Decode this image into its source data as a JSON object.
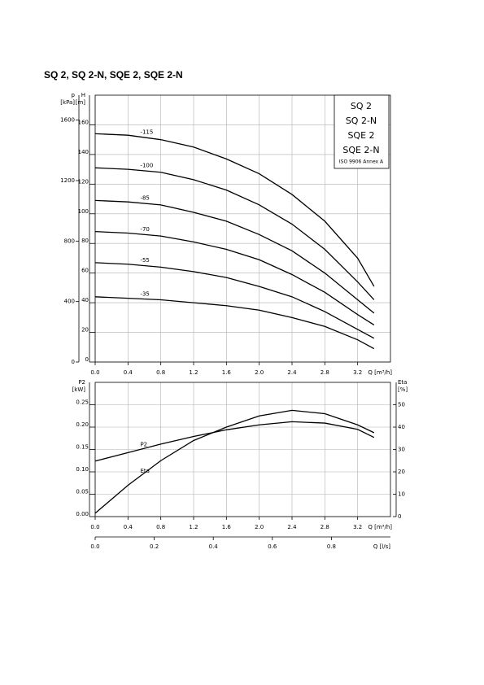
{
  "title": "SQ 2, SQ 2-N, SQE 2, SQE 2-N",
  "chart_data": [
    {
      "type": "line",
      "xlabel": "Q [m³/h]",
      "ylabel": [
        "H",
        "[m]"
      ],
      "y2label": [
        "p",
        "[kPa]"
      ],
      "legend_box": [
        "SQ 2",
        "SQ 2-N",
        "SQE 2",
        "SQE 2-N"
      ],
      "note": "ISO 9906 Annex A",
      "x": [
        0,
        0.4,
        0.8,
        1.2,
        1.6,
        2.0,
        2.4,
        2.8,
        3.2,
        3.4
      ],
      "series": [
        {
          "name": "-115",
          "color": "#000000",
          "values": [
            154,
            153,
            150,
            145,
            137,
            127,
            113,
            95,
            70,
            51
          ]
        },
        {
          "name": "-100",
          "color": "#000000",
          "values": [
            131,
            130,
            128,
            123,
            116,
            106,
            93,
            76,
            54,
            42
          ]
        },
        {
          "name": "-85",
          "color": "#000000",
          "values": [
            109,
            108,
            106,
            101,
            95,
            86,
            75,
            60,
            42,
            33
          ]
        },
        {
          "name": "-70",
          "color": "#000000",
          "values": [
            88,
            87,
            85,
            81,
            76,
            69,
            59,
            47,
            32,
            25
          ]
        },
        {
          "name": "-55",
          "color": "#000000",
          "values": [
            67,
            66,
            64,
            61,
            57,
            51,
            44,
            34,
            22,
            16
          ]
        },
        {
          "name": "-35",
          "color": "#000000",
          "values": [
            44,
            43,
            42,
            40,
            38,
            35,
            30,
            24,
            15,
            9
          ]
        }
      ],
      "xlim": [
        0,
        3.6
      ],
      "xticks": [
        {
          "value": 0,
          "label": "0.0"
        },
        0.4,
        0.8,
        1.2,
        1.6,
        {
          "value": 2,
          "label": "2.0"
        },
        2.4,
        2.8,
        3.2
      ],
      "ylim": [
        0,
        180
      ],
      "yticks": [
        0,
        20,
        40,
        60,
        80,
        100,
        120,
        140,
        160
      ],
      "y2lim": [
        0,
        1765
      ],
      "y2ticks": [
        0,
        400,
        800,
        1200,
        1600
      ],
      "grid": true
    },
    {
      "type": "line",
      "xlabel": "Q [m³/h]",
      "x2label": "Q [l/s]",
      "ylabel": [
        "P2",
        "[kW]"
      ],
      "y2label": [
        "Eta",
        "[%]"
      ],
      "x": [
        0,
        0.4,
        0.8,
        1.2,
        1.6,
        2.0,
        2.4,
        2.8,
        3.2,
        3.4
      ],
      "series": [
        {
          "name": "P2",
          "color": "#000000",
          "values": [
            0.124,
            0.143,
            0.162,
            0.179,
            0.194,
            0.205,
            0.212,
            0.209,
            0.195,
            0.177
          ]
        },
        {
          "name": "Eta",
          "color": "#000000",
          "axis": "y2",
          "values": [
            1.5,
            14,
            25,
            34,
            40,
            45,
            47.5,
            46,
            41,
            37.5
          ]
        }
      ],
      "xlim": [
        0,
        3.6
      ],
      "xticks": [
        {
          "value": 0,
          "label": "0.0"
        },
        0.4,
        0.8,
        1.2,
        1.6,
        {
          "value": 2,
          "label": "2.0"
        },
        2.4,
        2.8,
        3.2
      ],
      "x2lim": [
        0,
        1
      ],
      "x2ticks": [
        {
          "value": 0,
          "label": "0.0"
        },
        0.2,
        0.4,
        0.6,
        0.8
      ],
      "ylim": [
        0,
        0.3
      ],
      "yticks": [
        {
          "value": 0,
          "label": "0.00"
        },
        0.05,
        {
          "value": 0.1,
          "label": "0.10"
        },
        0.15,
        {
          "value": 0.2,
          "label": "0.20"
        },
        0.25
      ],
      "y2lim": [
        0,
        60
      ],
      "y2ticks": [
        0,
        10,
        20,
        30,
        40,
        50
      ],
      "grid": true
    }
  ]
}
